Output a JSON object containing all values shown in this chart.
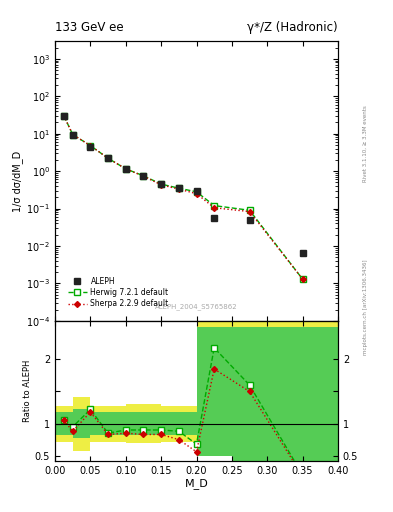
{
  "title_left": "133 GeV ee",
  "title_right": "γ*/Z (Hadronic)",
  "ylabel_main": "1/σ dσ/dM_D",
  "ylabel_ratio": "Ratio to ALEPH",
  "xlabel": "M_D",
  "watermark": "ALEPH_2004_S5765862",
  "right_label_top": "Rivet 3.1.10, ≥ 3.3M events",
  "right_label_bot": "mcplots.cern.ch [arXiv:1306.3436]",
  "aleph_x": [
    0.0125,
    0.025,
    0.05,
    0.075,
    0.1,
    0.125,
    0.15,
    0.175,
    0.2,
    0.225,
    0.275,
    0.35
  ],
  "aleph_y": [
    30.0,
    9.0,
    4.5,
    2.2,
    1.15,
    0.75,
    0.45,
    0.35,
    0.3,
    0.055,
    0.05,
    0.0065
  ],
  "herwig_x": [
    0.0125,
    0.025,
    0.05,
    0.075,
    0.1,
    0.125,
    0.15,
    0.175,
    0.2,
    0.225,
    0.275,
    0.35
  ],
  "herwig_y": [
    30.0,
    9.5,
    4.8,
    2.2,
    1.15,
    0.75,
    0.45,
    0.35,
    0.28,
    0.12,
    0.09,
    0.0013
  ],
  "sherpa_x": [
    0.0125,
    0.025,
    0.05,
    0.075,
    0.1,
    0.125,
    0.15,
    0.175,
    0.2,
    0.225,
    0.275,
    0.35
  ],
  "sherpa_y": [
    30.0,
    9.5,
    4.8,
    2.2,
    1.15,
    0.73,
    0.43,
    0.33,
    0.25,
    0.105,
    0.083,
    0.0013
  ],
  "ratio_x": [
    0.0125,
    0.025,
    0.05,
    0.075,
    0.1,
    0.125,
    0.15,
    0.175,
    0.2,
    0.225,
    0.275,
    0.35
  ],
  "ratio_herwig": [
    1.05,
    0.95,
    1.22,
    0.85,
    0.9,
    0.9,
    0.9,
    0.88,
    0.68,
    2.18,
    1.6,
    0.2
  ],
  "ratio_sherpa": [
    1.05,
    0.88,
    1.18,
    0.83,
    0.85,
    0.83,
    0.83,
    0.75,
    0.56,
    1.85,
    1.5,
    0.18
  ],
  "band_x_edges": [
    0.0,
    0.025,
    0.05,
    0.1,
    0.15,
    0.2,
    0.25,
    0.325,
    0.4
  ],
  "band_yellow_lo": [
    0.72,
    0.58,
    0.72,
    0.7,
    0.72,
    0.5,
    0.42,
    0.42,
    0.42
  ],
  "band_yellow_hi": [
    1.28,
    1.42,
    1.28,
    1.3,
    1.28,
    2.6,
    2.6,
    2.6,
    2.6
  ],
  "band_green_lo": [
    0.82,
    0.78,
    0.82,
    0.82,
    0.82,
    0.5,
    0.42,
    0.42,
    0.42
  ],
  "band_green_hi": [
    1.18,
    1.22,
    1.18,
    1.18,
    1.18,
    2.5,
    2.5,
    2.5,
    2.5
  ],
  "xlim": [
    0.0,
    0.4
  ],
  "ylim_main": [
    0.0001,
    3000.0
  ],
  "ylim_ratio": [
    0.42,
    2.6
  ],
  "ratio_yticks": [
    0.5,
    1.0,
    1.5,
    2.0
  ],
  "color_aleph": "#222222",
  "color_herwig": "#00aa00",
  "color_sherpa": "#cc0000",
  "color_band_green": "#55cc55",
  "color_band_yellow": "#eeee44"
}
